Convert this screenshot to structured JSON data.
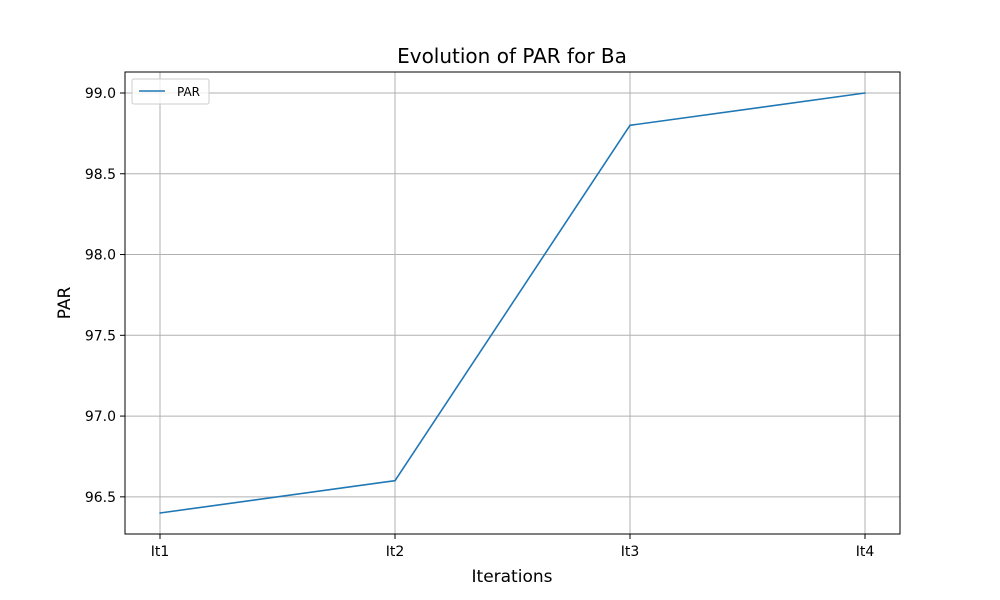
{
  "chart_data": {
    "type": "line",
    "title": "Evolution of PAR for Ba",
    "xlabel": "Iterations",
    "ylabel": "PAR",
    "categories": [
      "It1",
      "It2",
      "It3",
      "It4"
    ],
    "series": [
      {
        "name": "PAR",
        "values": [
          96.4,
          96.6,
          98.8,
          99.0
        ],
        "color": "#1f77b4"
      }
    ],
    "ylim": [
      96.27,
      99.13
    ],
    "yticks": [
      96.5,
      97.0,
      97.5,
      98.0,
      98.5,
      99.0
    ],
    "ytick_labels": [
      "96.5",
      "97.0",
      "97.5",
      "98.0",
      "98.5",
      "99.0"
    ],
    "grid": true,
    "legend": "upper-left"
  }
}
